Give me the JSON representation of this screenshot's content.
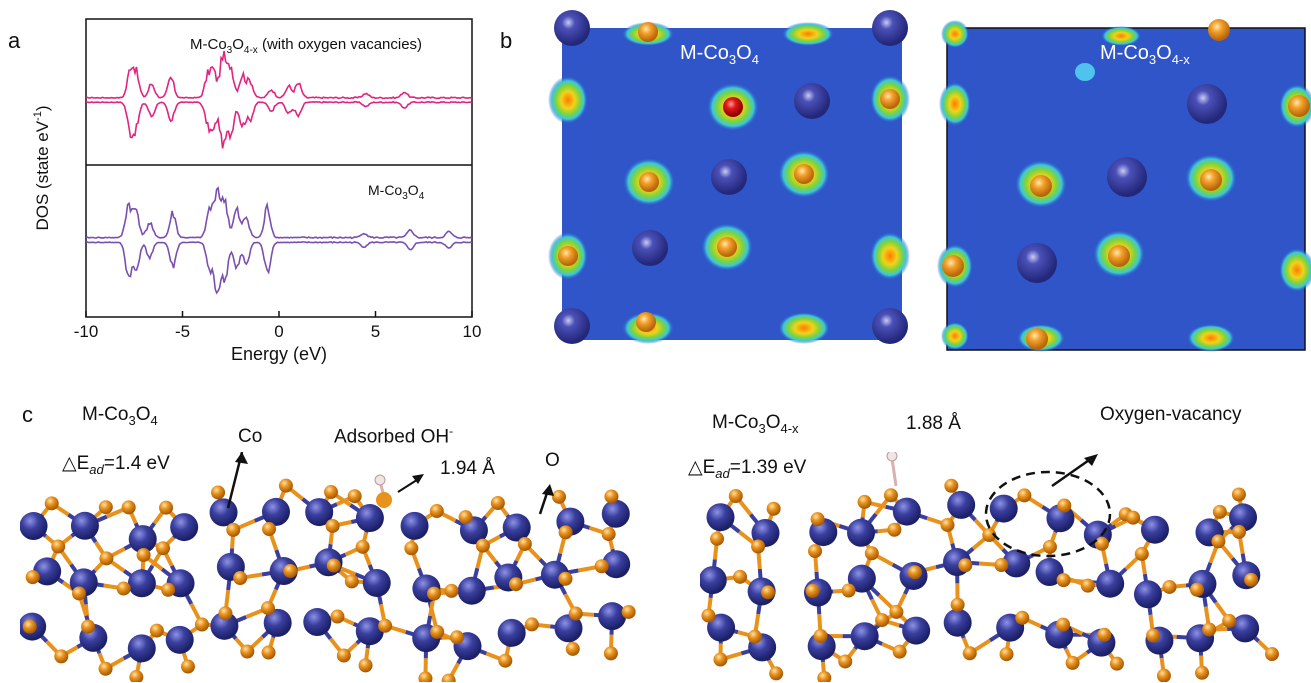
{
  "panels": {
    "a": "a",
    "b": "b",
    "c": "c"
  },
  "dos": {
    "chart_data": {
      "type": "line",
      "xlabel": "Energy (eV)",
      "ylabel": "DOS (state eV",
      "ylabel_sup": "-1",
      "ylabel_tail": ")",
      "xlim": [
        -10,
        10
      ],
      "xticks": [
        -10,
        -5,
        0,
        5,
        10
      ],
      "xtick_labels": [
        "-10",
        "-5",
        "0",
        "5",
        "10"
      ],
      "series": [
        {
          "name": "M-Co3O4-x (with oxygen vacancies)",
          "color": "#e0247f",
          "panel": "top",
          "peaks": [
            [
              -7.7,
              1.0
            ],
            [
              -7.4,
              0.8
            ],
            [
              -6.6,
              0.5
            ],
            [
              -5.6,
              0.7
            ],
            [
              -3.7,
              0.7
            ],
            [
              -3.4,
              0.9
            ],
            [
              -2.9,
              1.5
            ],
            [
              -2.5,
              1.1
            ],
            [
              -1.9,
              0.8
            ],
            [
              -1.5,
              0.6
            ],
            [
              -0.4,
              0.3
            ],
            [
              0.5,
              0.4
            ],
            [
              1.0,
              0.5
            ],
            [
              4.5,
              0.15
            ],
            [
              6.5,
              0.2
            ]
          ]
        },
        {
          "name": "M-Co3O4",
          "color": "#7b4fb0",
          "panel": "bottom",
          "peaks": [
            [
              -7.8,
              1.1
            ],
            [
              -7.4,
              0.9
            ],
            [
              -6.7,
              0.5
            ],
            [
              -5.5,
              0.8
            ],
            [
              -3.6,
              0.9
            ],
            [
              -3.2,
              1.6
            ],
            [
              -2.8,
              1.2
            ],
            [
              -2.2,
              0.9
            ],
            [
              -1.7,
              0.7
            ],
            [
              -0.6,
              1.0
            ],
            [
              4.4,
              0.15
            ],
            [
              6.8,
              0.25
            ],
            [
              8.8,
              0.2
            ]
          ]
        }
      ]
    },
    "top_label_main": "M-Co",
    "top_label_sub1": "3",
    "top_label_mid": "O",
    "top_label_sub2": "4-x",
    "top_label_tail": " (with oxygen vacancies)",
    "bottom_label_main": "M-Co",
    "bottom_label_sub1": "3",
    "bottom_label_mid": "O",
    "bottom_label_sub2": "4"
  },
  "maps": {
    "left": {
      "t1": "M-Co",
      "s1": "3",
      "t2": "O",
      "s2": "4"
    },
    "right": {
      "t1": "M-Co",
      "s1": "3",
      "t2": "O",
      "s2": "4-x"
    }
  },
  "structures": {
    "left": {
      "title_t1": "M-Co",
      "title_s1": "3",
      "title_t2": "O",
      "title_s2": "4",
      "energy_prefix": "△E",
      "energy_sub": "ad",
      "energy_value": "=1.4 eV",
      "co_label": "Co",
      "oh_label": "Adsorbed OH",
      "oh_sup": "-",
      "distance": "1.94 Å",
      "o_label": "O"
    },
    "right": {
      "title_t1": "M-Co",
      "title_s1": "3",
      "title_t2": "O",
      "title_s2": "4-x",
      "energy_prefix": "△E",
      "energy_sub": "ad",
      "energy_value": "=1.39 eV",
      "distance": "1.88 Å",
      "vacancy_label": "Oxygen-vacancy"
    }
  },
  "colors": {
    "co_atom": "#3a3f9e",
    "o_atom": "#e8921c",
    "map_bg": "#2f55c8",
    "dos_top": "#e0247f",
    "dos_bottom": "#7b4fb0"
  }
}
